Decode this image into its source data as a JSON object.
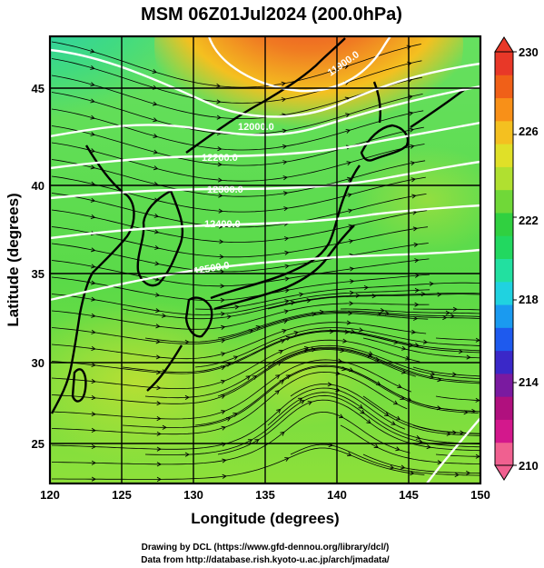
{
  "title": "MSM 06Z01Jul2024 (200.0hPa)",
  "xaxis": {
    "label": "Longitude (degrees)",
    "ticks": [
      "120",
      "125",
      "130",
      "135",
      "140",
      "145",
      "150"
    ]
  },
  "yaxis": {
    "label": "Latitude  (degrees)",
    "ticks": [
      "25",
      "30",
      "35",
      "40",
      "45"
    ]
  },
  "colorbar": {
    "ticks": [
      "230",
      "226",
      "222",
      "218",
      "214",
      "210"
    ],
    "colors": [
      "#f06090",
      "#d3188c",
      "#b0107e",
      "#7a1aa0",
      "#3a28c8",
      "#1e5aee",
      "#1a9af0",
      "#20d2e0",
      "#22e0a0",
      "#22d860",
      "#30d040",
      "#70d838",
      "#b0e030",
      "#e0e028",
      "#f4c020",
      "#f89018",
      "#f06018",
      "#e83828"
    ]
  },
  "contours": [
    {
      "label": "11900.0"
    },
    {
      "label": "12000.0"
    },
    {
      "label": "12100.0"
    },
    {
      "label": "12200.0"
    },
    {
      "label": "12300.0"
    },
    {
      "label": "12400.0"
    },
    {
      "label": "12500.0"
    }
  ],
  "credits": [
    "Drawing by DCL (https://www.gfd-dennou.org/library/dcl/)",
    "Data from http://database.rish.kyoto-u.ac.jp/arch/jmadata/"
  ]
}
